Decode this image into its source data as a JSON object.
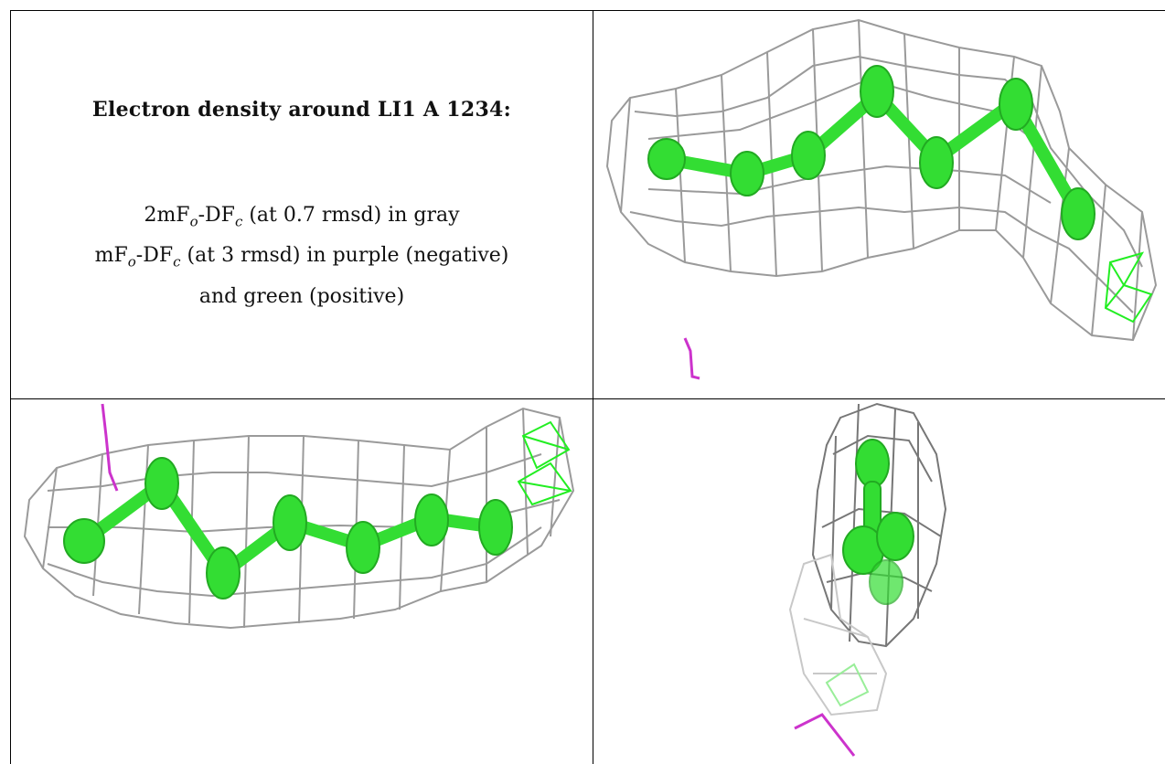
{
  "caption": {
    "title": "Electron density around LI1 A 1234:",
    "line1_pre": "2mF",
    "line1_sub1": "o",
    "line1_mid": "-DF",
    "line1_sub2": "c",
    "line1_post": " (at 0.7 rmsd) in gray",
    "line2_pre": "mF",
    "line2_sub1": "o",
    "line2_mid": "-DF",
    "line2_sub2": "c",
    "line2_post": " (at 3 rmsd) in purple (negative)",
    "line3": "and green (positive)"
  },
  "colors": {
    "mesh_gray": "#9a9a9a",
    "atom_green": "#33dd33",
    "positive_green": "#22ee22",
    "negative_purple": "#cc33cc"
  },
  "views": [
    {
      "name": "view-top-right",
      "ligand": "LI1 A 1234"
    },
    {
      "name": "view-bottom-left",
      "ligand": "LI1 A 1234"
    },
    {
      "name": "view-bottom-right",
      "ligand": "LI1 A 1234"
    }
  ]
}
